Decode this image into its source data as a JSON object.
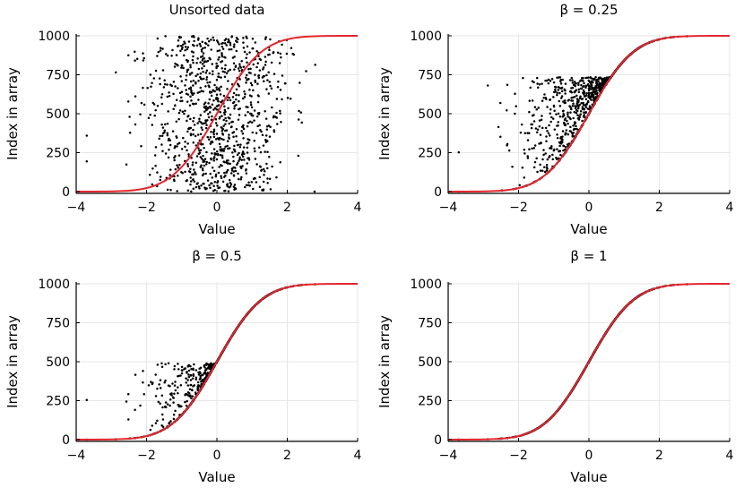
{
  "chart_data": [
    {
      "type": "scatter",
      "title": "Unsorted data",
      "beta": null,
      "xlabel": "Value",
      "ylabel": "Index in array",
      "xlim": [
        -4,
        4
      ],
      "ylim": [
        0,
        1000
      ],
      "xticks": [
        "-4",
        "-2",
        "0",
        "2",
        "4"
      ],
      "yticks": [
        "0",
        "250",
        "500",
        "750",
        "1000"
      ],
      "grid": true,
      "legend": "none",
      "series": [
        {
          "name": "data points",
          "kind": "points",
          "n": 1000,
          "distribution": "standard normal"
        },
        {
          "name": "normal CDF",
          "kind": "line",
          "color": "#e3262e"
        }
      ]
    },
    {
      "type": "scatter",
      "title": "β = 0.25",
      "beta": 0.25,
      "xlabel": "Value",
      "ylabel": "Index in array",
      "xlim": [
        -4,
        4
      ],
      "ylim": [
        0,
        1000
      ],
      "xticks": [
        "-4",
        "-2",
        "0",
        "2",
        "4"
      ],
      "yticks": [
        "0",
        "250",
        "500",
        "750",
        "1000"
      ],
      "grid": true,
      "legend": "none",
      "series": [
        {
          "name": "data points",
          "kind": "points",
          "n": 1000,
          "distribution": "standard normal"
        },
        {
          "name": "normal CDF",
          "kind": "line",
          "color": "#e3262e"
        }
      ]
    },
    {
      "type": "scatter",
      "title": "β = 0.5",
      "beta": 0.5,
      "xlabel": "Value",
      "ylabel": "Index in array",
      "xlim": [
        -4,
        4
      ],
      "ylim": [
        0,
        1000
      ],
      "xticks": [
        "-4",
        "-2",
        "0",
        "2",
        "4"
      ],
      "yticks": [
        "0",
        "250",
        "500",
        "750",
        "1000"
      ],
      "grid": true,
      "legend": "none",
      "series": [
        {
          "name": "data points",
          "kind": "points",
          "n": 1000,
          "distribution": "standard normal"
        },
        {
          "name": "normal CDF",
          "kind": "line",
          "color": "#e3262e"
        }
      ]
    },
    {
      "type": "scatter",
      "title": "β = 1",
      "beta": 1,
      "xlabel": "Value",
      "ylabel": "Index in array",
      "xlim": [
        -4,
        4
      ],
      "ylim": [
        0,
        1000
      ],
      "xticks": [
        "-4",
        "-2",
        "0",
        "2",
        "4"
      ],
      "yticks": [
        "0",
        "250",
        "500",
        "750",
        "1000"
      ],
      "grid": true,
      "legend": "none",
      "series": [
        {
          "name": "data points",
          "kind": "points",
          "n": 1000,
          "distribution": "standard normal"
        },
        {
          "name": "normal CDF",
          "kind": "line",
          "color": "#e3262e"
        }
      ]
    }
  ]
}
